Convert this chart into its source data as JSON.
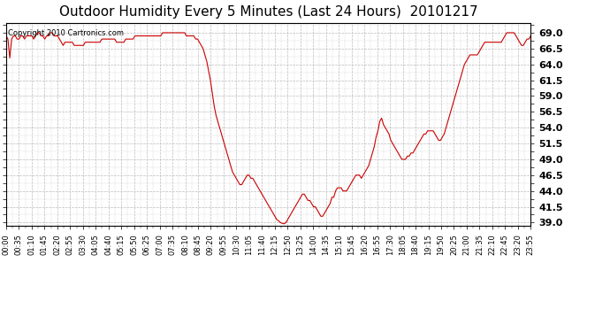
{
  "title": "Outdoor Humidity Every 5 Minutes (Last 24 Hours)  20101217",
  "copyright_text": "Copyright 2010 Cartronics.com",
  "line_color": "#cc0000",
  "bg_color": "#ffffff",
  "plot_bg_color": "#ffffff",
  "grid_color": "#bbbbbb",
  "title_fontsize": 11,
  "ylim": [
    38.5,
    70.5
  ],
  "yticks": [
    39.0,
    41.5,
    44.0,
    46.5,
    49.0,
    51.5,
    54.0,
    56.5,
    59.0,
    61.5,
    64.0,
    66.5,
    69.0
  ],
  "x_tick_labels": [
    "00:00",
    "00:35",
    "01:10",
    "01:45",
    "02:20",
    "02:55",
    "03:30",
    "04:05",
    "04:40",
    "05:15",
    "05:50",
    "06:25",
    "07:00",
    "07:35",
    "08:10",
    "08:45",
    "09:20",
    "09:55",
    "10:30",
    "11:05",
    "11:40",
    "12:15",
    "12:50",
    "13:25",
    "14:00",
    "14:35",
    "15:10",
    "15:45",
    "16:20",
    "16:55",
    "17:30",
    "18:05",
    "18:40",
    "19:15",
    "19:50",
    "20:25",
    "21:00",
    "21:35",
    "22:10",
    "22:45",
    "23:20",
    "23:55"
  ],
  "humidity_values": [
    68.5,
    68.0,
    65.0,
    68.0,
    68.5,
    68.5,
    68.0,
    68.0,
    68.5,
    68.5,
    68.0,
    68.5,
    68.5,
    68.5,
    68.5,
    68.0,
    68.5,
    69.0,
    69.0,
    68.5,
    68.5,
    68.0,
    68.5,
    68.5,
    69.0,
    69.0,
    68.5,
    68.5,
    68.5,
    68.0,
    67.5,
    67.0,
    67.5,
    67.5,
    67.5,
    67.5,
    67.5,
    67.0,
    67.0,
    67.0,
    67.0,
    67.0,
    67.0,
    67.5,
    67.5,
    67.5,
    67.5,
    67.5,
    67.5,
    67.5,
    67.5,
    67.5,
    68.0,
    68.0,
    68.0,
    68.0,
    68.0,
    68.0,
    68.0,
    68.0,
    67.5,
    67.5,
    67.5,
    67.5,
    67.5,
    68.0,
    68.0,
    68.0,
    68.0,
    68.0,
    68.5,
    68.5,
    68.5,
    68.5,
    68.5,
    68.5,
    68.5,
    68.5,
    68.5,
    68.5,
    68.5,
    68.5,
    68.5,
    68.5,
    68.5,
    69.0,
    69.0,
    69.0,
    69.0,
    69.0,
    69.0,
    69.0,
    69.0,
    69.0,
    69.0,
    69.0,
    69.0,
    69.0,
    68.5,
    68.5,
    68.5,
    68.5,
    68.5,
    68.0,
    68.0,
    67.5,
    67.0,
    66.5,
    65.5,
    64.5,
    63.0,
    61.5,
    59.5,
    57.5,
    56.0,
    55.0,
    54.0,
    53.0,
    52.0,
    51.0,
    50.0,
    49.0,
    48.0,
    47.0,
    46.5,
    46.0,
    45.5,
    45.0,
    45.0,
    45.5,
    46.0,
    46.5,
    46.5,
    46.0,
    46.0,
    45.5,
    45.0,
    44.5,
    44.0,
    43.5,
    43.0,
    42.5,
    42.0,
    41.5,
    41.0,
    40.5,
    40.0,
    39.5,
    39.3,
    39.0,
    38.9,
    38.8,
    39.0,
    39.5,
    40.0,
    40.5,
    41.0,
    41.5,
    42.0,
    42.5,
    43.0,
    43.5,
    43.5,
    43.0,
    42.5,
    42.5,
    42.0,
    41.5,
    41.5,
    41.0,
    40.5,
    40.0,
    40.0,
    40.5,
    41.0,
    41.5,
    42.0,
    43.0,
    43.0,
    44.0,
    44.5,
    44.5,
    44.5,
    44.0,
    44.0,
    44.0,
    44.5,
    45.0,
    45.5,
    46.0,
    46.5,
    46.5,
    46.5,
    46.0,
    46.5,
    47.0,
    47.5,
    48.0,
    49.0,
    50.0,
    51.0,
    52.5,
    53.5,
    55.0,
    55.5,
    54.5,
    54.0,
    53.5,
    53.0,
    52.0,
    51.5,
    51.0,
    50.5,
    50.0,
    49.5,
    49.0,
    49.0,
    49.0,
    49.5,
    49.5,
    50.0,
    50.0,
    50.5,
    51.0,
    51.5,
    52.0,
    52.5,
    53.0,
    53.0,
    53.5,
    53.5,
    53.5,
    53.5,
    53.0,
    52.5,
    52.0,
    52.0,
    52.5,
    53.0,
    54.0,
    55.0,
    56.0,
    57.0,
    58.0,
    59.0,
    60.0,
    61.0,
    62.0,
    63.0,
    64.0,
    64.5,
    65.0,
    65.5,
    65.5,
    65.5,
    65.5,
    65.5,
    66.0,
    66.5,
    67.0,
    67.5,
    67.5,
    67.5,
    67.5,
    67.5,
    67.5,
    67.5,
    67.5,
    67.5,
    67.5,
    68.0,
    68.5,
    69.0,
    69.0,
    69.0,
    69.0,
    69.0,
    68.5,
    68.0,
    67.5,
    67.0,
    67.0,
    67.5,
    68.0,
    68.0,
    68.5
  ]
}
